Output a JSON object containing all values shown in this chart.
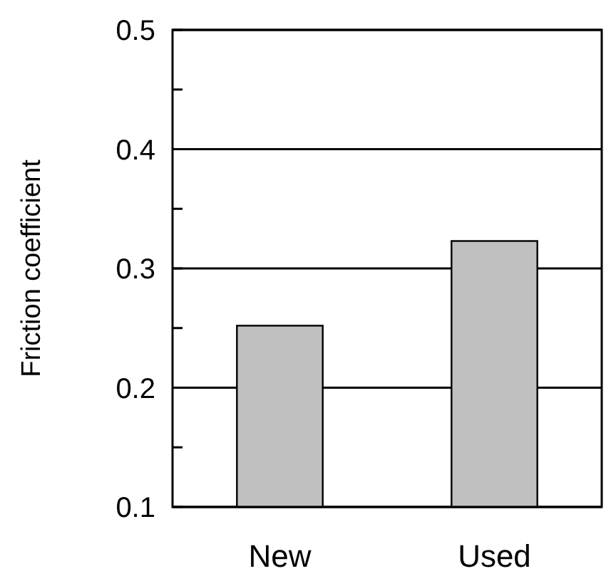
{
  "chart_data": {
    "type": "bar",
    "ylabel": "Friction coefficient",
    "categories": [
      "New",
      "Used"
    ],
    "values": [
      0.252,
      0.323
    ],
    "color": "#c0c0c0",
    "ylim": [
      0.1,
      0.5
    ],
    "yticks": [
      0.1,
      {
        "value": 0.15,
        "label": null
      },
      0.2,
      {
        "value": 0.25,
        "label": null
      },
      0.3,
      {
        "value": 0.35,
        "label": null
      },
      0.4,
      {
        "value": 0.45,
        "label": null
      },
      0.5
    ],
    "grid": "y"
  }
}
